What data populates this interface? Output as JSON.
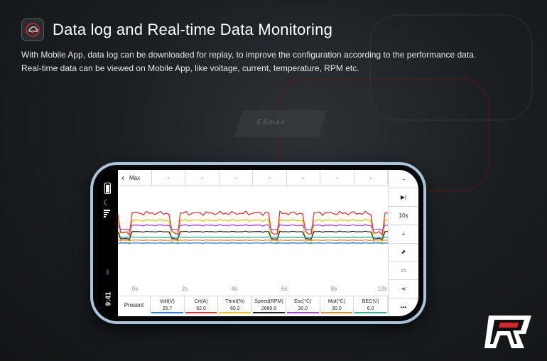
{
  "header": {
    "title": "Data log and Real-time Data Monitoring",
    "desc_line1": "With Mobile App, data log can be downloaded for replay, to improve the configuration according to the performance data.",
    "desc_line2": "Real-time data can be viewed on Mobile App, like voltage, current, temperature, RPM etc."
  },
  "background_chip_text": "E6max",
  "phone": {
    "time": "9:41",
    "topbar": {
      "max_label": "Max",
      "cells": [
        "-",
        "-",
        "-",
        "-",
        "-",
        "-",
        "-"
      ]
    },
    "x_ticks": [
      "0s",
      "2s",
      "4s",
      "6s",
      "8s",
      "10s"
    ],
    "present_label": "Present",
    "readouts": [
      {
        "label": "Volt(V)",
        "value": "25.7",
        "color": "#2f7fd6"
      },
      {
        "label": "Crt(A)",
        "value": "62.0",
        "color": "#d23a3a"
      },
      {
        "label": "Throt(%)",
        "value": "60.2",
        "color": "#e3c22a"
      },
      {
        "label": "Speed(RPM)",
        "value": "2660.0",
        "color": "#222222"
      },
      {
        "label": "Esc(°C)",
        "value": "30.0",
        "color": "#a24ad6"
      },
      {
        "label": "Mot(°C)",
        "value": "30.0",
        "color": "#e38a2a"
      },
      {
        "label": "BEC(V)",
        "value": "6.0",
        "color": "#2fb3a3"
      }
    ],
    "sidebar": {
      "arrow": "→",
      "play": "▶|",
      "interval": "10s",
      "download": "⤓",
      "export": "⬈",
      "folder": "▭",
      "share": "⋖",
      "more": "•••"
    }
  },
  "colors": {
    "volt": "#2f7fd6",
    "current": "#d23a3a",
    "throttle": "#e3c22a",
    "speed": "#222222",
    "esc": "#a24ad6",
    "motor": "#e38a2a",
    "bec": "#2fb3a3",
    "logo_red": "#d8262f"
  }
}
